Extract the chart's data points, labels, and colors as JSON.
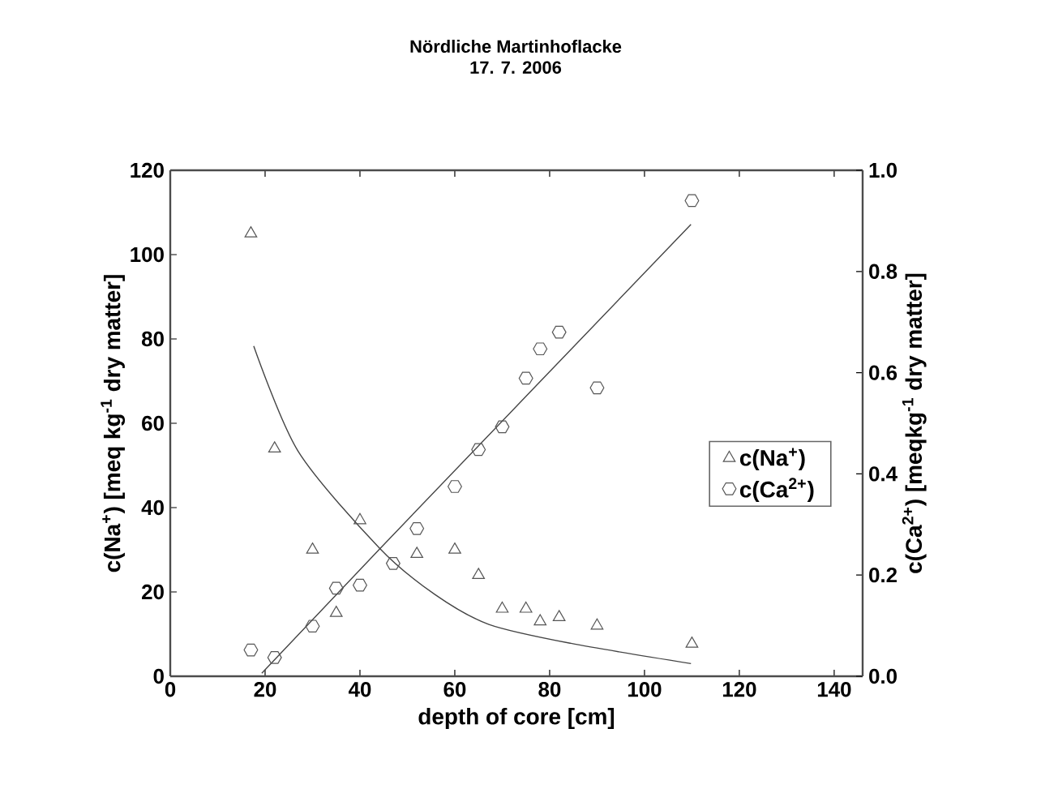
{
  "chart_data": {
    "type": "scatter",
    "title": "Nördliche Martinhoflacke",
    "subtitle": "17. 7. 2006",
    "xlabel": "depth of core [cm]",
    "ylabel": "c(Na$^{+}$) [meq kg$^{-1}$ dry matter]",
    "y2label": "c(Ca$^{2+}$) [meqkg$^{-1}$ dry matter]",
    "xlim": [
      0,
      146
    ],
    "xticks": [
      0,
      20,
      40,
      60,
      80,
      100,
      120,
      140
    ],
    "ylim": [
      0,
      120
    ],
    "yticks": [
      0,
      20,
      40,
      60,
      80,
      100,
      120
    ],
    "y2lim": [
      0,
      1
    ],
    "y2ticks": [
      {
        "value": 0,
        "label": "0.0"
      },
      {
        "value": 0.2,
        "label": "0.2"
      },
      {
        "value": 0.4,
        "label": "0.4"
      },
      {
        "value": 0.6,
        "label": "0.6"
      },
      {
        "value": 0.8,
        "label": "0.8"
      },
      {
        "value": 1,
        "label": "1.0"
      }
    ],
    "grid": false,
    "legend": "right",
    "series": [
      {
        "name": "c(Na$^{+}$)",
        "marker": "triangle",
        "color": "#555555",
        "x": [
          17,
          22,
          30,
          35,
          40,
          52,
          60,
          65,
          70,
          75,
          78,
          82,
          90,
          110
        ],
        "values": [
          105,
          54,
          30,
          15,
          37,
          29,
          30,
          24,
          16,
          16,
          13,
          14,
          12,
          7.7
        ]
      },
      {
        "name": "c(Ca$^{2+}$)",
        "color": "#555555",
        "axis": "y2",
        "x": [
          17,
          22,
          30,
          35,
          40,
          47,
          52,
          60,
          65,
          70,
          75,
          78,
          82,
          90,
          110
        ],
        "values": [
          0.052,
          0.037,
          0.099,
          0.174,
          0.18,
          0.223,
          0.292,
          0.375,
          0.448,
          0.493,
          0.589,
          0.647,
          0.68,
          0.57,
          0.94
        ]
      },
      {
        "type": "line",
        "marker": "none",
        "line_style": "solid",
        "color": "#444444",
        "x": [
          17.6,
          27,
          44.2,
          55.8,
          67.2,
          84.5,
          109.8
        ],
        "values": [
          78.3,
          53.3,
          30.3,
          19.4,
          12.3,
          7.8,
          3
        ]
      },
      {
        "type": "line",
        "marker": "none",
        "line_style": "solid",
        "color": "#444444",
        "axis": "y2",
        "x": [
          19.3,
          44.2,
          109.8
        ],
        "values": [
          0.006,
          0.252,
          0.893
        ]
      }
    ]
  }
}
